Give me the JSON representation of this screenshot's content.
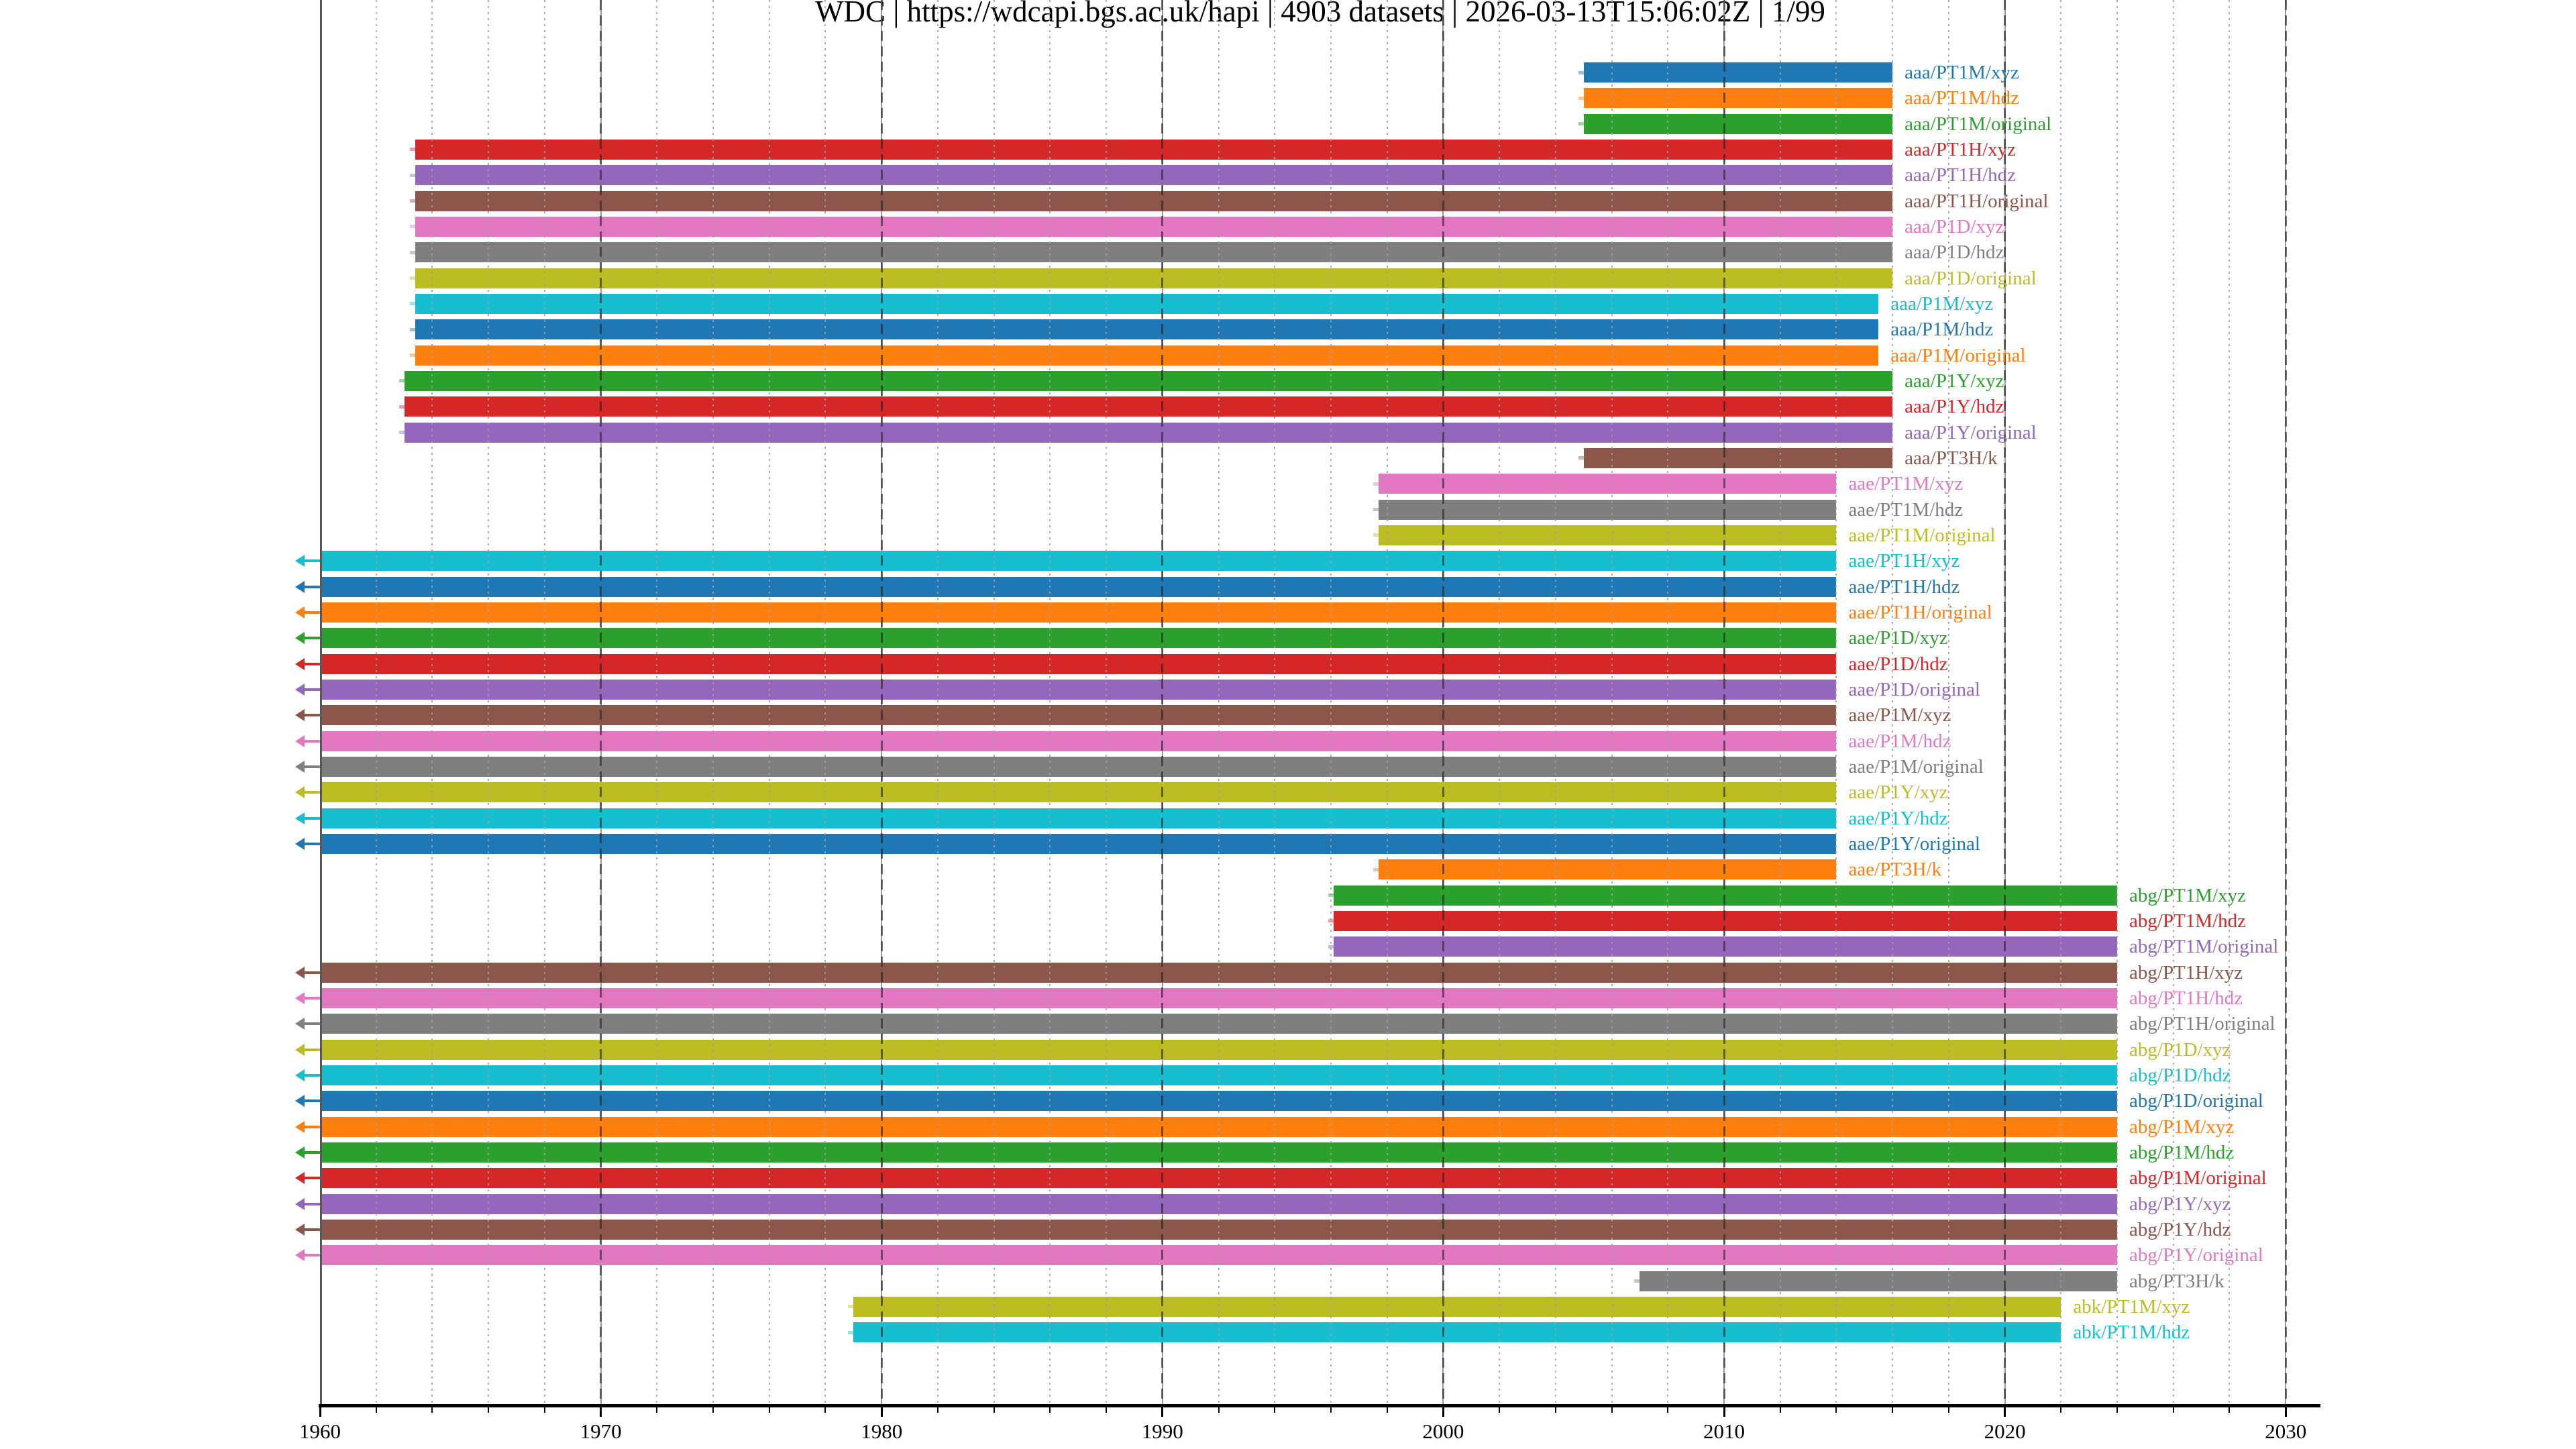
{
  "title": "WDC | https://wdcapi.bgs.ac.uk/hapi | 4903 datasets | 2026-03-13T15:06:02Z | 1/99",
  "chart_data": {
    "type": "bar",
    "subtype": "horizontal-interval-timeline",
    "title": "WDC | https://wdcapi.bgs.ac.uk/hapi | 4903 datasets | 2026-03-13T15:06:02Z | 1/99",
    "xlabel": "",
    "ylabel": "",
    "xlim": [
      1960,
      2031.3
    ],
    "legend": "none",
    "grid": {
      "major_style": "dark-dashed-over-bars",
      "minor_style": "light-dotted",
      "minor_step_years": 2
    },
    "x_axis": {
      "major_tick_years": [
        1960,
        1970,
        1980,
        1990,
        2000,
        2010,
        2020,
        2030
      ],
      "major_tick_labels": [
        "1960",
        "1970",
        "1980",
        "1990",
        "2000",
        "2010",
        "2020",
        "2030"
      ],
      "minor_tick_step_years": 2
    },
    "palette_tab10": [
      "#1f77b4",
      "#ff7f0e",
      "#2ca02c",
      "#d62728",
      "#9467bd",
      "#8c564b",
      "#e377c2",
      "#7f7f7f",
      "#bcbd22",
      "#17becf"
    ],
    "axis_color": "#000000",
    "spine_color": "#58585a",
    "note_open_start": "open_start=true means bar begins before 1960 and is drawn with a left-pointing arrow at the axis edge",
    "rows": [
      {
        "label": "aaa/PT1M/xyz",
        "start": 2005.0,
        "end": 2016.0,
        "color": "#1f77b4",
        "open_start": false
      },
      {
        "label": "aaa/PT1M/hdz",
        "start": 2005.0,
        "end": 2016.0,
        "color": "#ff7f0e",
        "open_start": false
      },
      {
        "label": "aaa/PT1M/original",
        "start": 2005.0,
        "end": 2016.0,
        "color": "#2ca02c",
        "open_start": false
      },
      {
        "label": "aaa/PT1H/xyz",
        "start": 1963.4,
        "end": 2016.0,
        "color": "#d62728",
        "open_start": false
      },
      {
        "label": "aaa/PT1H/hdz",
        "start": 1963.4,
        "end": 2016.0,
        "color": "#9467bd",
        "open_start": false
      },
      {
        "label": "aaa/PT1H/original",
        "start": 1963.4,
        "end": 2016.0,
        "color": "#8c564b",
        "open_start": false
      },
      {
        "label": "aaa/P1D/xyz",
        "start": 1963.4,
        "end": 2016.0,
        "color": "#e377c2",
        "open_start": false
      },
      {
        "label": "aaa/P1D/hdz",
        "start": 1963.4,
        "end": 2016.0,
        "color": "#7f7f7f",
        "open_start": false
      },
      {
        "label": "aaa/P1D/original",
        "start": 1963.4,
        "end": 2016.0,
        "color": "#bcbd22",
        "open_start": false
      },
      {
        "label": "aaa/P1M/xyz",
        "start": 1963.4,
        "end": 2015.5,
        "color": "#17becf",
        "open_start": false
      },
      {
        "label": "aaa/P1M/hdz",
        "start": 1963.4,
        "end": 2015.5,
        "color": "#1f77b4",
        "open_start": false
      },
      {
        "label": "aaa/P1M/original",
        "start": 1963.4,
        "end": 2015.5,
        "color": "#ff7f0e",
        "open_start": false
      },
      {
        "label": "aaa/P1Y/xyz",
        "start": 1963.0,
        "end": 2016.0,
        "color": "#2ca02c",
        "open_start": false
      },
      {
        "label": "aaa/P1Y/hdz",
        "start": 1963.0,
        "end": 2016.0,
        "color": "#d62728",
        "open_start": false
      },
      {
        "label": "aaa/P1Y/original",
        "start": 1963.0,
        "end": 2016.0,
        "color": "#9467bd",
        "open_start": false
      },
      {
        "label": "aaa/PT3H/k",
        "start": 2005.0,
        "end": 2016.0,
        "color": "#8c564b",
        "open_start": false
      },
      {
        "label": "aae/PT1M/xyz",
        "start": 1997.7,
        "end": 2014.0,
        "color": "#e377c2",
        "open_start": false
      },
      {
        "label": "aae/PT1M/hdz",
        "start": 1997.7,
        "end": 2014.0,
        "color": "#7f7f7f",
        "open_start": false
      },
      {
        "label": "aae/PT1M/original",
        "start": 1997.7,
        "end": 2014.0,
        "color": "#bcbd22",
        "open_start": false
      },
      {
        "label": "aae/PT1H/xyz",
        "start": 1960.0,
        "end": 2014.0,
        "color": "#17becf",
        "open_start": true
      },
      {
        "label": "aae/PT1H/hdz",
        "start": 1960.0,
        "end": 2014.0,
        "color": "#1f77b4",
        "open_start": true
      },
      {
        "label": "aae/PT1H/original",
        "start": 1960.0,
        "end": 2014.0,
        "color": "#ff7f0e",
        "open_start": true
      },
      {
        "label": "aae/P1D/xyz",
        "start": 1960.0,
        "end": 2014.0,
        "color": "#2ca02c",
        "open_start": true
      },
      {
        "label": "aae/P1D/hdz",
        "start": 1960.0,
        "end": 2014.0,
        "color": "#d62728",
        "open_start": true
      },
      {
        "label": "aae/P1D/original",
        "start": 1960.0,
        "end": 2014.0,
        "color": "#9467bd",
        "open_start": true
      },
      {
        "label": "aae/P1M/xyz",
        "start": 1960.0,
        "end": 2014.0,
        "color": "#8c564b",
        "open_start": true
      },
      {
        "label": "aae/P1M/hdz",
        "start": 1960.0,
        "end": 2014.0,
        "color": "#e377c2",
        "open_start": true
      },
      {
        "label": "aae/P1M/original",
        "start": 1960.0,
        "end": 2014.0,
        "color": "#7f7f7f",
        "open_start": true
      },
      {
        "label": "aae/P1Y/xyz",
        "start": 1960.0,
        "end": 2014.0,
        "color": "#bcbd22",
        "open_start": true
      },
      {
        "label": "aae/P1Y/hdz",
        "start": 1960.0,
        "end": 2014.0,
        "color": "#17becf",
        "open_start": true
      },
      {
        "label": "aae/P1Y/original",
        "start": 1960.0,
        "end": 2014.0,
        "color": "#1f77b4",
        "open_start": true
      },
      {
        "label": "aae/PT3H/k",
        "start": 1997.7,
        "end": 2014.0,
        "color": "#ff7f0e",
        "open_start": false
      },
      {
        "label": "abg/PT1M/xyz",
        "start": 1996.1,
        "end": 2024.0,
        "color": "#2ca02c",
        "open_start": false
      },
      {
        "label": "abg/PT1M/hdz",
        "start": 1996.1,
        "end": 2024.0,
        "color": "#d62728",
        "open_start": false
      },
      {
        "label": "abg/PT1M/original",
        "start": 1996.1,
        "end": 2024.0,
        "color": "#9467bd",
        "open_start": false
      },
      {
        "label": "abg/PT1H/xyz",
        "start": 1960.0,
        "end": 2024.0,
        "color": "#8c564b",
        "open_start": true
      },
      {
        "label": "abg/PT1H/hdz",
        "start": 1960.0,
        "end": 2024.0,
        "color": "#e377c2",
        "open_start": true
      },
      {
        "label": "abg/PT1H/original",
        "start": 1960.0,
        "end": 2024.0,
        "color": "#7f7f7f",
        "open_start": true
      },
      {
        "label": "abg/P1D/xyz",
        "start": 1960.0,
        "end": 2024.0,
        "color": "#bcbd22",
        "open_start": true
      },
      {
        "label": "abg/P1D/hdz",
        "start": 1960.0,
        "end": 2024.0,
        "color": "#17becf",
        "open_start": true
      },
      {
        "label": "abg/P1D/original",
        "start": 1960.0,
        "end": 2024.0,
        "color": "#1f77b4",
        "open_start": true
      },
      {
        "label": "abg/P1M/xyz",
        "start": 1960.0,
        "end": 2024.0,
        "color": "#ff7f0e",
        "open_start": true
      },
      {
        "label": "abg/P1M/hdz",
        "start": 1960.0,
        "end": 2024.0,
        "color": "#2ca02c",
        "open_start": true
      },
      {
        "label": "abg/P1M/original",
        "start": 1960.0,
        "end": 2024.0,
        "color": "#d62728",
        "open_start": true
      },
      {
        "label": "abg/P1Y/xyz",
        "start": 1960.0,
        "end": 2024.0,
        "color": "#9467bd",
        "open_start": true
      },
      {
        "label": "abg/P1Y/hdz",
        "start": 1960.0,
        "end": 2024.0,
        "color": "#8c564b",
        "open_start": true
      },
      {
        "label": "abg/P1Y/original",
        "start": 1960.0,
        "end": 2024.0,
        "color": "#e377c2",
        "open_start": true
      },
      {
        "label": "abg/PT3H/k",
        "start": 2007.0,
        "end": 2024.0,
        "color": "#7f7f7f",
        "open_start": false
      },
      {
        "label": "abk/PT1M/xyz",
        "start": 1979.0,
        "end": 2022.0,
        "color": "#bcbd22",
        "open_start": false
      },
      {
        "label": "abk/PT1M/hdz",
        "start": 1979.0,
        "end": 2022.0,
        "color": "#17becf",
        "open_start": false
      }
    ]
  }
}
